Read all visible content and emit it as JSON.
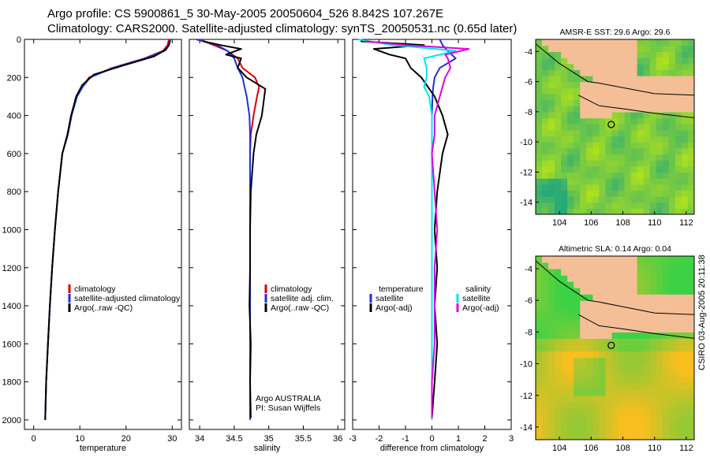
{
  "title_line1": "Argo profile: CS 5900861_5 30-May-2005 20050604_526 8.842S 107.267E",
  "title_line2": "Climatology: CARS2000. Satellite-adjusted climatology: synTS_20050531.nc (0.65d later)",
  "side_stamp": "CSIRO 03-Aug-2005 20:11:38",
  "colors": {
    "climatology": "#dd0000",
    "satellite": "#1f2ee0",
    "argo": "#000000",
    "salinity": "#00e5ee",
    "argo_salinity": "#e000e0",
    "land": "#f4bf97"
  },
  "chart_data": [
    {
      "type": "line",
      "id": "temperature",
      "xlabel": "temperature",
      "ylabel": "",
      "xlim": [
        -2,
        32
      ],
      "ylim": [
        2050,
        0
      ],
      "xticks": [
        0,
        10,
        20,
        30
      ],
      "yticks": [
        0,
        200,
        400,
        600,
        800,
        1000,
        1200,
        1400,
        1600,
        1800,
        2000
      ],
      "legend": {
        "position": "lower-right",
        "entries": [
          "climatology",
          "satellite-adjusted climatology",
          "Argo(..raw -QC)"
        ]
      },
      "series": [
        {
          "name": "climatology",
          "color": "#dd0000",
          "x": [
            29.3,
            29,
            28,
            24,
            17,
            12,
            10.5,
            9.3,
            8.2,
            7.4,
            6.2,
            5.3,
            4.6,
            4.0,
            3.5,
            3.1,
            2.7,
            2.5
          ],
          "y": [
            0,
            30,
            60,
            100,
            150,
            200,
            250,
            300,
            400,
            500,
            600,
            800,
            1000,
            1200,
            1400,
            1600,
            1800,
            2000
          ]
        },
        {
          "name": "satellite-adjusted climatology",
          "color": "#1f2ee0",
          "x": [
            29.6,
            29.3,
            28.3,
            24.2,
            17.2,
            12.2,
            10.6,
            9.4,
            8.2,
            7.4,
            6.2,
            5.3,
            4.6,
            4.0,
            3.5,
            3.1,
            2.7,
            2.5
          ],
          "y": [
            0,
            30,
            60,
            100,
            150,
            200,
            250,
            300,
            400,
            500,
            600,
            800,
            1000,
            1200,
            1400,
            1600,
            1800,
            2000
          ]
        },
        {
          "name": "Argo(..raw -QC)",
          "color": "#000000",
          "x": [
            29.5,
            29.3,
            28.6,
            26,
            19,
            13,
            10.5,
            9.2,
            8.1,
            7.3,
            6.2,
            5.3,
            4.6,
            4.0,
            3.5,
            3.1,
            2.7,
            2.5
          ],
          "y": [
            10,
            30,
            55,
            90,
            140,
            185,
            240,
            300,
            400,
            500,
            600,
            800,
            1000,
            1200,
            1400,
            1600,
            1800,
            2000
          ]
        }
      ]
    },
    {
      "type": "line",
      "id": "salinity",
      "xlabel": "salinity",
      "ylabel": "",
      "xlim": [
        33.85,
        36.1
      ],
      "ylim": [
        2050,
        0
      ],
      "xticks": [
        34,
        34.5,
        35,
        35.5,
        36
      ],
      "yticks": [
        0,
        200,
        400,
        600,
        800,
        1000,
        1200,
        1400,
        1600,
        1800,
        2000
      ],
      "legend": {
        "position": "lower-right",
        "entries": [
          "climatology",
          "satellite adj. clim.",
          "Argo(..raw -QC)"
        ]
      },
      "annotations": [
        "Argo AUSTRALIA",
        "PI: Susan Wijffels"
      ],
      "series": [
        {
          "name": "climatology",
          "color": "#dd0000",
          "x": [
            34.0,
            34.2,
            34.4,
            34.55,
            34.62,
            34.8,
            34.86,
            34.83,
            34.78,
            34.74,
            34.73,
            34.73,
            34.73,
            34.73,
            34.73,
            34.73,
            34.73,
            34.73
          ],
          "y": [
            0,
            30,
            60,
            100,
            150,
            200,
            250,
            300,
            400,
            500,
            600,
            800,
            1000,
            1200,
            1400,
            1600,
            1800,
            1870
          ]
        },
        {
          "name": "satellite adj. clim.",
          "color": "#1f2ee0",
          "x": [
            33.95,
            34.25,
            34.4,
            34.5,
            34.55,
            34.62,
            34.65,
            34.68,
            34.72,
            34.73,
            34.73,
            34.73,
            34.73,
            34.73,
            34.73,
            34.73,
            34.73,
            34.73
          ],
          "y": [
            0,
            30,
            60,
            100,
            150,
            200,
            250,
            300,
            400,
            500,
            600,
            800,
            1000,
            1200,
            1400,
            1600,
            1800,
            2000
          ]
        },
        {
          "name": "Argo(..raw -QC)",
          "color": "#000000",
          "x": [
            34.05,
            34.3,
            34.6,
            34.38,
            34.6,
            34.55,
            34.68,
            34.95,
            34.9,
            34.82,
            34.78,
            34.74,
            34.73,
            34.73,
            34.72,
            34.74,
            34.73,
            34.74
          ],
          "y": [
            10,
            30,
            50,
            80,
            100,
            150,
            200,
            260,
            400,
            500,
            600,
            800,
            1000,
            1200,
            1400,
            1600,
            1800,
            1990
          ]
        }
      ]
    },
    {
      "type": "line",
      "id": "difference",
      "xlabel": "difference from climatology",
      "ylabel": "",
      "xlim": [
        -3,
        3
      ],
      "ylim": [
        2050,
        0
      ],
      "xticks": [
        -3,
        -2,
        -1,
        0,
        1,
        2,
        3
      ],
      "yticks": [
        0,
        200,
        400,
        600,
        800,
        1000,
        1200,
        1400,
        1600,
        1800,
        2000
      ],
      "legend": {
        "position": "lower-right",
        "groups": [
          {
            "heading": "temperature",
            "entries": [
              "satellite",
              "Argo(-adj)"
            ]
          },
          {
            "heading": "salinity",
            "entries": [
              "satellite",
              "Argo(-adj)"
            ]
          }
        ]
      },
      "series": [
        {
          "name": "temperature satellite",
          "color": "#1f2ee0",
          "x": [
            0.3,
            0.4,
            0.6,
            0.9,
            0.3,
            0.1,
            0.05,
            0.02,
            0,
            0,
            0,
            0,
            0,
            0,
            0,
            0,
            0,
            0
          ],
          "y": [
            0,
            30,
            60,
            100,
            150,
            200,
            250,
            300,
            400,
            500,
            600,
            800,
            1000,
            1200,
            1400,
            1600,
            1800,
            2000
          ]
        },
        {
          "name": "temperature Argo(-adj)",
          "color": "#000000",
          "x": [
            -2.7,
            -0.3,
            -2.2,
            -1.6,
            -1.0,
            -0.8,
            -0.4,
            0.1,
            0.4,
            0.6,
            0.4,
            0.2,
            0.1,
            0.2,
            0.1,
            0.2,
            0.1,
            0.0
          ],
          "y": [
            10,
            30,
            50,
            80,
            100,
            150,
            200,
            300,
            400,
            500,
            600,
            800,
            1000,
            1200,
            1400,
            1600,
            1800,
            1990
          ]
        },
        {
          "name": "salinity satellite",
          "color": "#00e5ee",
          "x": [
            -2.8,
            -1.5,
            0.9,
            -0.3,
            -0.2,
            -0.2,
            -0.3,
            -0.1,
            0.0,
            0.0,
            0.0,
            0.0,
            0.0,
            0.0,
            0.0,
            0.0,
            0.0,
            0.0
          ],
          "y": [
            0,
            30,
            60,
            100,
            150,
            200,
            250,
            300,
            400,
            500,
            600,
            800,
            1000,
            1200,
            1400,
            1600,
            1800,
            2000
          ]
        },
        {
          "name": "salinity Argo(-adj)",
          "color": "#e000e0",
          "x": [
            -2.5,
            -1.0,
            1.4,
            0.5,
            0.6,
            0.7,
            0.5,
            0.3,
            0.1,
            0.1,
            0.0,
            0.1,
            0.2,
            0.1,
            0.1,
            0.1,
            0.0,
            0.0
          ],
          "y": [
            10,
            30,
            50,
            80,
            100,
            150,
            200,
            300,
            400,
            500,
            600,
            800,
            1000,
            1200,
            1400,
            1600,
            1800,
            1990
          ]
        }
      ]
    },
    {
      "type": "heatmap",
      "id": "sst-map",
      "title": "AMSR-E SST: 29.6 Argo: 29.6",
      "xlim": [
        102.5,
        112.5
      ],
      "ylim": [
        -14.8,
        -3.2
      ],
      "xticks": [
        104,
        106,
        108,
        110,
        112
      ],
      "yticks": [
        -4,
        -6,
        -8,
        -10,
        -12,
        -14
      ],
      "marker": {
        "lon": 107.267,
        "lat": -8.842
      }
    },
    {
      "type": "heatmap",
      "id": "sla-map",
      "title": "Altimetric SLA: 0.14 Argo: 0.04",
      "xlim": [
        102.5,
        112.5
      ],
      "ylim": [
        -14.8,
        -3.2
      ],
      "xticks": [
        104,
        106,
        108,
        110,
        112
      ],
      "yticks": [
        -4,
        -6,
        -8,
        -10,
        -12,
        -14
      ],
      "marker": {
        "lon": 107.267,
        "lat": -8.842
      }
    }
  ]
}
